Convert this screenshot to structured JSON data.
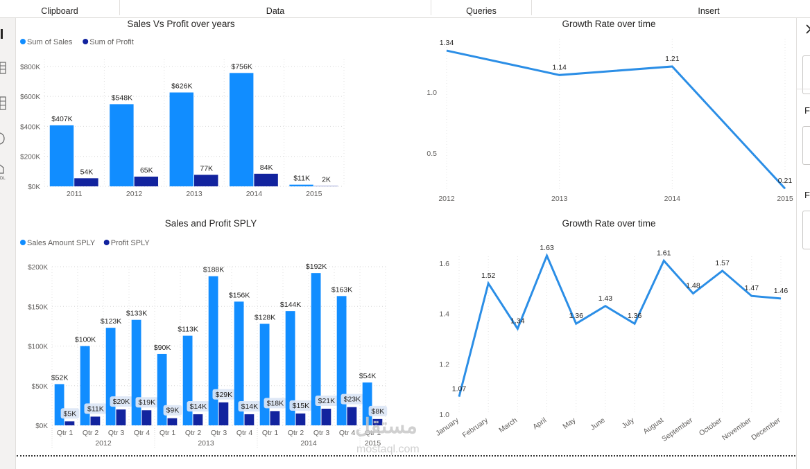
{
  "ribbon": {
    "groups": [
      {
        "label": "Clipboard"
      },
      {
        "label": "Data"
      },
      {
        "label": "Queries"
      },
      {
        "label": "Insert"
      }
    ]
  },
  "right_pane": {
    "label_1": "Fi",
    "label_2": "Fi"
  },
  "watermark": {
    "arabic": "مستقل",
    "latin": "mostaql.com"
  },
  "colors": {
    "sales": "#118dff",
    "profit": "#12239e",
    "line": "#2b8ee6"
  },
  "chart_data": [
    {
      "id": "sales-vs-profit",
      "type": "bar",
      "title": "Sales Vs Profit over years",
      "legend_position": "top-left",
      "categories": [
        "2011",
        "2012",
        "2013",
        "2014",
        "2015"
      ],
      "series": [
        {
          "name": "Sum of Sales",
          "values": [
            407,
            548,
            626,
            756,
            11
          ],
          "labels": [
            "$407K",
            "$548K",
            "$626K",
            "$756K",
            "$11K"
          ]
        },
        {
          "name": "Sum of Profit",
          "values": [
            54,
            65,
            77,
            84,
            2
          ],
          "labels": [
            "54K",
            "65K",
            "77K",
            "84K",
            "2K"
          ]
        }
      ],
      "yticks": [
        0,
        200,
        400,
        600,
        800
      ],
      "ytick_labels": [
        "$0K",
        "$200K",
        "$400K",
        "$600K",
        "$800K"
      ],
      "ylim": [
        0,
        850
      ]
    },
    {
      "id": "growth-yearly",
      "type": "line",
      "title": "Growth Rate over time",
      "categories": [
        "2012",
        "2013",
        "2014",
        "2015"
      ],
      "values": [
        1.34,
        1.14,
        1.21,
        0.21
      ],
      "labels": [
        "1.34",
        "1.14",
        "1.21",
        "0.21"
      ],
      "yticks": [
        0.5,
        1.0
      ],
      "ytick_labels": [
        "0.5",
        "1.0"
      ],
      "ylim": [
        0.2,
        1.38
      ]
    },
    {
      "id": "sales-profit-sply",
      "type": "bar",
      "title": "Sales and Profit SPLY",
      "legend_position": "top-left",
      "categories": [
        "Qtr 1",
        "Qtr 2",
        "Qtr 3",
        "Qtr 4",
        "Qtr 1",
        "Qtr 2",
        "Qtr 3",
        "Qtr 4",
        "Qtr 1",
        "Qtr 2",
        "Qtr 3",
        "Qtr 4",
        "Qtr 1"
      ],
      "groups": [
        {
          "label": "2012",
          "span": 4
        },
        {
          "label": "2013",
          "span": 4
        },
        {
          "label": "2014",
          "span": 4
        },
        {
          "label": "2015",
          "span": 1
        }
      ],
      "series": [
        {
          "name": "Sales Amount SPLY",
          "values": [
            52,
            100,
            123,
            133,
            90,
            113,
            188,
            156,
            128,
            144,
            192,
            163,
            54
          ],
          "labels": [
            "$52K",
            "$100K",
            "$123K",
            "$133K",
            "$90K",
            "$113K",
            "$188K",
            "$156K",
            "$128K",
            "$144K",
            "$192K",
            "$163K",
            "$54K"
          ]
        },
        {
          "name": "Profit SPLY",
          "values": [
            5,
            11,
            20,
            19,
            9,
            14,
            29,
            14,
            18,
            15,
            21,
            23,
            8
          ],
          "labels": [
            "$5K",
            "$11K",
            "$20K",
            "$19K",
            "$9K",
            "$14K",
            "$29K",
            "$14K",
            "$18K",
            "$15K",
            "$21K",
            "$23K",
            "$8K"
          ]
        }
      ],
      "yticks": [
        0,
        50,
        100,
        150,
        200
      ],
      "ytick_labels": [
        "$0K",
        "$50K",
        "$100K",
        "$150K",
        "$200K"
      ],
      "ylim": [
        0,
        200
      ]
    },
    {
      "id": "growth-monthly",
      "type": "line",
      "title": "Growth Rate over time",
      "categories": [
        "January",
        "February",
        "March",
        "April",
        "May",
        "June",
        "July",
        "August",
        "September",
        "October",
        "November",
        "December"
      ],
      "values": [
        1.07,
        1.52,
        1.34,
        1.63,
        1.36,
        1.43,
        1.36,
        1.61,
        1.48,
        1.57,
        1.47,
        1.46
      ],
      "labels": [
        "1.07",
        "1.52",
        "1.34",
        "1.63",
        "1.36",
        "1.43",
        "1.36",
        "1.61",
        "1.48",
        "1.57",
        "1.47",
        "1.46"
      ],
      "yticks": [
        1.0,
        1.2,
        1.4,
        1.6
      ],
      "ytick_labels": [
        "1.0",
        "1.2",
        "1.4",
        "1.6"
      ],
      "ylim": [
        1.0,
        1.6
      ]
    }
  ]
}
